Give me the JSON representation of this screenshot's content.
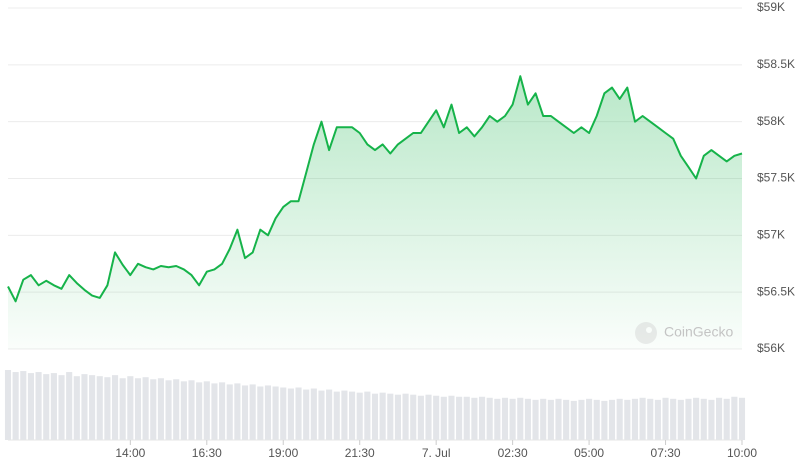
{
  "chart_data": {
    "type": "area",
    "categories": [
      null,
      null,
      null,
      null,
      null,
      null,
      null,
      null,
      null,
      null,
      null,
      null,
      null,
      null,
      null,
      null,
      "14:00",
      null,
      null,
      null,
      null,
      null,
      null,
      null,
      null,
      null,
      "16:30",
      null,
      null,
      null,
      null,
      null,
      null,
      null,
      null,
      null,
      "19:00",
      null,
      null,
      null,
      null,
      null,
      null,
      null,
      null,
      null,
      "21:30",
      null,
      null,
      null,
      null,
      null,
      null,
      null,
      null,
      null,
      "7. Jul",
      null,
      null,
      null,
      null,
      null,
      null,
      null,
      null,
      null,
      "02:30",
      null,
      null,
      null,
      null,
      null,
      null,
      null,
      null,
      null,
      "05:00",
      null,
      null,
      null,
      null,
      null,
      null,
      null,
      null,
      null,
      "07:30",
      null,
      null,
      null,
      null,
      null,
      null,
      null,
      null,
      null,
      "10:00"
    ],
    "series": [
      {
        "color": "#16b34a",
        "values": [
          56550,
          56420,
          56610,
          56650,
          56560,
          56600,
          56560,
          56530,
          56650,
          56580,
          56520,
          56470,
          56450,
          56560,
          56850,
          56740,
          56650,
          56750,
          56720,
          56700,
          56730,
          56720,
          56730,
          56700,
          56650,
          56560,
          56680,
          56700,
          56750,
          56880,
          57050,
          56800,
          56850,
          57050,
          57000,
          57150,
          57250,
          57300,
          57300,
          57550,
          57800,
          58000,
          57750,
          57950,
          57950,
          57950,
          57900,
          57800,
          57750,
          57800,
          57720,
          57800,
          57850,
          57900,
          57900,
          58000,
          58100,
          57950,
          58150,
          57900,
          57950,
          57870,
          57950,
          58050,
          58000,
          58050,
          58150,
          58400,
          58150,
          58250,
          58050,
          58050,
          58000,
          57950,
          57900,
          57950,
          57900,
          58050,
          58250,
          58300,
          58200,
          58300,
          58000,
          58050,
          58000,
          57950,
          57900,
          57850,
          57700,
          57600,
          57500,
          57700,
          57750,
          57700,
          57650,
          57700,
          57720
        ]
      }
    ],
    "volume": {
      "color": "#e3e5e9",
      "values": [
        68,
        66,
        67,
        65,
        66,
        64,
        65,
        63,
        66,
        62,
        64,
        63,
        62,
        61,
        63,
        60,
        62,
        60,
        61,
        59,
        60,
        58,
        59,
        57,
        58,
        56,
        57,
        55,
        56,
        54,
        55,
        53,
        54,
        52,
        53,
        52,
        51,
        50,
        51,
        49,
        50,
        48,
        49,
        47,
        48,
        47,
        46,
        47,
        45,
        46,
        45,
        44,
        45,
        44,
        43,
        44,
        43,
        42,
        43,
        42,
        42,
        41,
        42,
        41,
        40,
        41,
        40,
        41,
        40,
        39,
        40,
        39,
        40,
        39,
        38,
        39,
        40,
        39,
        38,
        39,
        40,
        39,
        40,
        41,
        40,
        39,
        41,
        40,
        39,
        40,
        41,
        40,
        39,
        41,
        40,
        42,
        41
      ]
    },
    "ylim": [
      56000,
      59000
    ],
    "yticks": [
      {
        "value": 56000,
        "label": "$56K"
      },
      {
        "value": 56500,
        "label": "$56.5K"
      },
      {
        "value": 57000,
        "label": "$57K"
      },
      {
        "value": 57500,
        "label": "$57.5K"
      },
      {
        "value": 58000,
        "label": "$58K"
      },
      {
        "value": 58500,
        "label": "$58.5K"
      },
      {
        "value": 59000,
        "label": "$59K"
      }
    ],
    "grid": true,
    "watermark": "CoinGecko"
  }
}
